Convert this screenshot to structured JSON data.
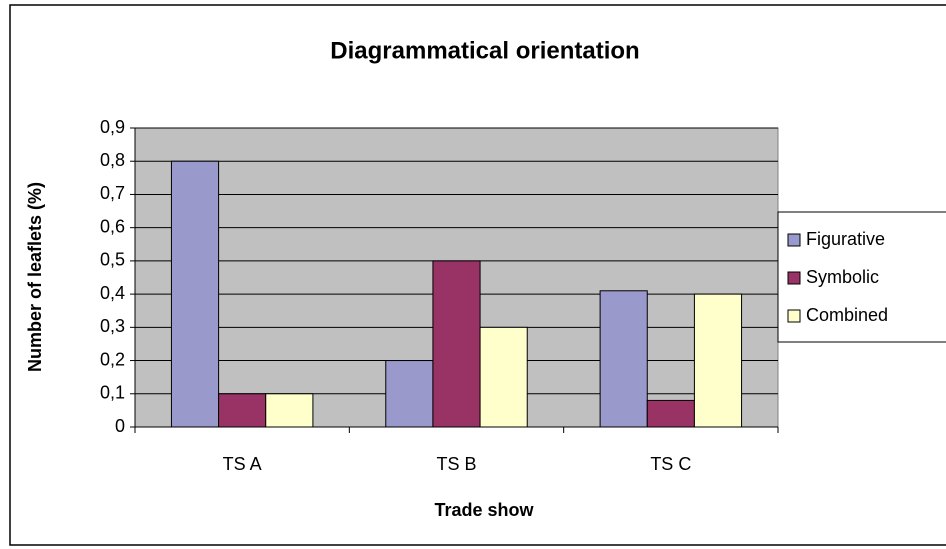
{
  "chart_data": {
    "type": "bar",
    "title": "Diagrammatical orientation",
    "x_label": "Trade show",
    "y_label": "Number of leaflets (%)",
    "categories": [
      "TS A",
      "TS B",
      "TS C"
    ],
    "series": [
      {
        "name": "Figurative",
        "color": "#9999cc",
        "values": [
          0.8,
          0.2,
          0.41
        ]
      },
      {
        "name": "Symbolic",
        "color": "#993366",
        "values": [
          0.1,
          0.5,
          0.08
        ]
      },
      {
        "name": "Combined",
        "color": "#ffffcc",
        "values": [
          0.1,
          0.3,
          0.4
        ]
      }
    ],
    "ylim": [
      0,
      0.9
    ],
    "yticks": [
      0,
      {
        "value": 0.1,
        "label": "0,1"
      },
      {
        "value": 0.2,
        "label": "0,2"
      },
      {
        "value": 0.3,
        "label": "0,3"
      },
      {
        "value": 0.4,
        "label": "0,4"
      },
      {
        "value": 0.5,
        "label": "0,5"
      },
      {
        "value": 0.6,
        "label": "0,6"
      },
      {
        "value": 0.7,
        "label": "0,7"
      },
      {
        "value": 0.8,
        "label": "0,8"
      },
      {
        "value": 0.9,
        "label": "0,9"
      }
    ],
    "grid": true,
    "plot_background": "#c0c0c0",
    "legend": "right"
  }
}
